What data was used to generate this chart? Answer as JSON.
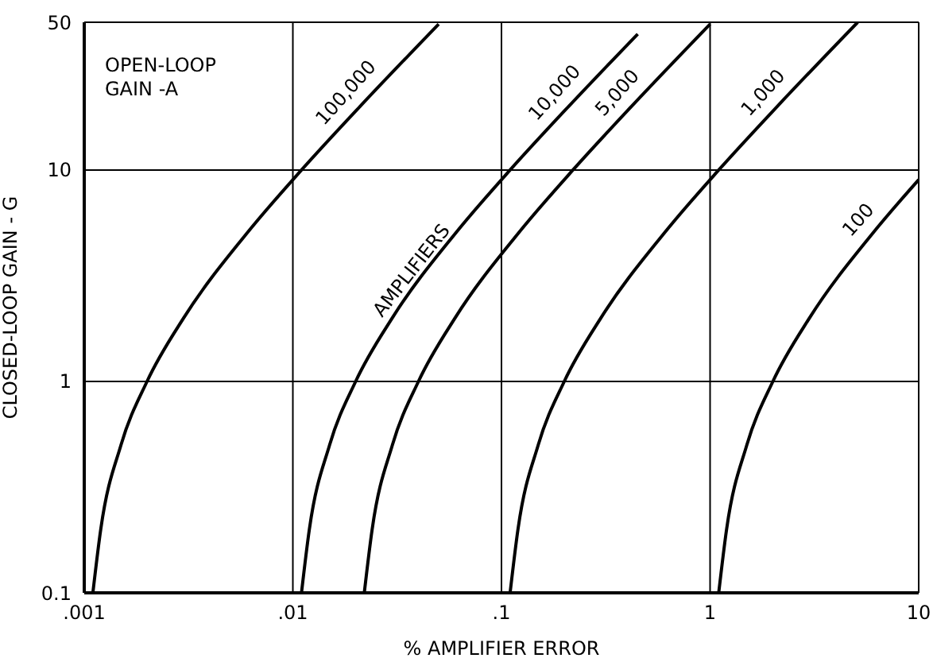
{
  "chart_data": {
    "type": "line",
    "xlabel": "% AMPLIFIER ERROR",
    "ylabel": "CLOSED-LOOP GAIN - G",
    "legend_title": "OPEN-LOOP GAIN -A",
    "log": "xy",
    "grid": true,
    "legend": false,
    "marker": "none",
    "line_style": "solid",
    "xlim": [
      0.001,
      10
    ],
    "ylim": [
      0.1,
      50
    ],
    "xticks": [
      {
        "value": 0.001,
        "label": ".001"
      },
      {
        "value": 0.01,
        "label": ".01"
      },
      {
        "value": 0.1,
        "label": ".1"
      },
      1,
      10
    ],
    "yticks": [
      {
        "value": 0.1,
        "label": "0.1"
      },
      1,
      10,
      50
    ],
    "annotations": [
      {
        "text": "AMPLIFIERS",
        "x": 0.045,
        "y": 3
      }
    ],
    "series": [
      {
        "name": "100,000",
        "color": "#000000",
        "x": [
          0.0011,
          0.0012,
          0.0015,
          0.002,
          0.003,
          0.006,
          0.011,
          0.021,
          0.05
        ],
        "values": [
          0.1,
          0.2,
          0.5,
          1,
          2,
          5,
          10,
          20,
          49
        ]
      },
      {
        "name": "10,000",
        "color": "#000000",
        "x": [
          0.011,
          0.012,
          0.015,
          0.02,
          0.03,
          0.06,
          0.11,
          0.21,
          0.45
        ],
        "values": [
          0.1,
          0.2,
          0.5,
          1,
          2,
          5,
          10,
          20,
          44
        ]
      },
      {
        "name": "5,000",
        "color": "#000000",
        "x": [
          0.022,
          0.024,
          0.03,
          0.04,
          0.06,
          0.12,
          0.22,
          0.42,
          1.0
        ],
        "values": [
          0.1,
          0.2,
          0.5,
          1,
          2,
          5,
          10,
          20,
          49
        ]
      },
      {
        "name": "1,000",
        "color": "#000000",
        "x": [
          0.11,
          0.12,
          0.15,
          0.2,
          0.3,
          0.6,
          1.1,
          2.1,
          5.1
        ],
        "values": [
          0.1,
          0.2,
          0.5,
          1,
          2,
          5,
          10,
          20,
          50
        ]
      },
      {
        "name": "100",
        "color": "#000000",
        "x": [
          1.1,
          1.2,
          1.5,
          2,
          3,
          6,
          10
        ],
        "values": [
          0.1,
          0.2,
          0.5,
          1,
          2,
          5,
          9
        ]
      }
    ]
  }
}
